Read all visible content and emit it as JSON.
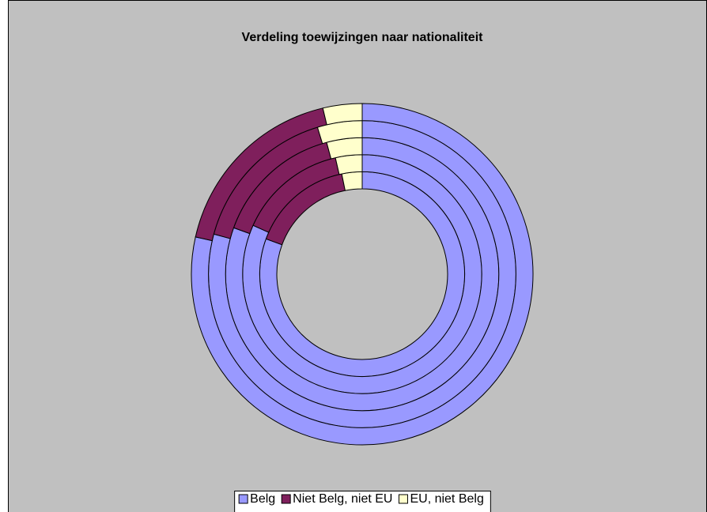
{
  "chart_data": {
    "type": "doughnut",
    "title": "Verdeling toewijzingen naar nationaliteit",
    "categories": [
      "Belg",
      "Niet Belg, niet EU",
      "EU, niet Belg"
    ],
    "colors": [
      "#9999ff",
      "#7f1f5c",
      "#ffffcc"
    ],
    "series": [
      {
        "values": [
          80.6,
          16.2,
          3.2
        ]
      },
      {
        "values": [
          81.7,
          14.7,
          3.6
        ]
      },
      {
        "values": [
          80.6,
          15.3,
          4.2
        ]
      },
      {
        "values": [
          79.2,
          16.1,
          4.7
        ]
      },
      {
        "values": [
          78.5,
          17.8,
          3.7
        ]
      }
    ],
    "legend": "bottom"
  }
}
